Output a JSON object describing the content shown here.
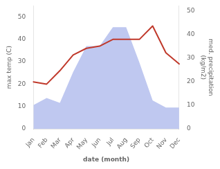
{
  "chart_data": {
    "type": "line",
    "categories": [
      "Jan",
      "Feb",
      "Mar",
      "Apr",
      "May",
      "Jun",
      "Jul",
      "Aug",
      "Sep",
      "Oct",
      "Nov",
      "Dec"
    ],
    "series": [
      {
        "type": "line",
        "color": "#c0392b",
        "values": [
          21,
          20,
          26,
          33,
          36,
          37,
          40,
          40,
          40,
          46,
          34,
          29
        ]
      },
      {
        "type": "area",
        "color": "#bfc8f0",
        "axis": "y2",
        "values": [
          10,
          13,
          11,
          24,
          35,
          35,
          43,
          43,
          28,
          12,
          9,
          9
        ]
      }
    ],
    "xlabel": "date (month)",
    "ylabel": "max temp (C)",
    "y2label": "med. precipitation\n(kg/m2)",
    "ylim": [
      0,
      55
    ],
    "yticks": [
      0,
      10,
      20,
      30,
      40,
      50
    ],
    "y2lim": [
      0,
      52
    ],
    "y2ticks": [
      0,
      10,
      20,
      30,
      40,
      50
    ],
    "grid": false
  }
}
